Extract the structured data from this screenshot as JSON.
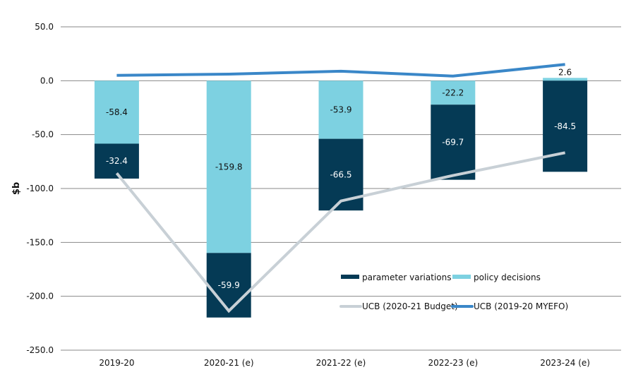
{
  "chart_data": {
    "type": "bar",
    "stacked": true,
    "title": "",
    "xlabel": "",
    "ylabel": "$b",
    "ylim": [
      -250,
      50
    ],
    "yticks": [
      50,
      0,
      -50,
      -100,
      -150,
      -200,
      -250
    ],
    "ytick_labels": [
      "50.0",
      "0.0",
      "-50.0",
      "-100.0",
      "-150.0",
      "-200.0",
      "-250.0"
    ],
    "grid": true,
    "legend_position": "bottom-right",
    "categories": [
      "2019-20",
      "2020-21  (e)",
      "2021-22  (e)",
      "2022-23  (e)",
      "2023-24  (e)"
    ],
    "series": [
      {
        "name": "parameter variations",
        "kind": "bar",
        "color": "#053a55",
        "label_color": "#ffffff",
        "values": [
          -32.4,
          -59.9,
          -66.5,
          -69.7,
          -84.5
        ],
        "labels": [
          "-32.4",
          "-59.9",
          "-66.5",
          "-69.7",
          "-84.5"
        ]
      },
      {
        "name": "policy decisions",
        "kind": "bar",
        "color": "#7dd1e1",
        "label_color": "#111111",
        "values": [
          -58.4,
          -159.8,
          -53.9,
          -22.2,
          2.6
        ],
        "labels": [
          "-58.4",
          "-159.8",
          "-53.9",
          "-22.2",
          "2.6"
        ]
      },
      {
        "name": "UCB (2020-21 Budget)",
        "kind": "line",
        "color": "#c8d0d6",
        "values": [
          -85.8,
          -213.6,
          -111.6,
          -87.9,
          -66.8
        ]
      },
      {
        "name": "UCB (2019-20 MYEFO)",
        "kind": "line",
        "color": "#3a87c8",
        "values": [
          5.0,
          6.1,
          8.8,
          4.3,
          15.1
        ]
      }
    ]
  }
}
